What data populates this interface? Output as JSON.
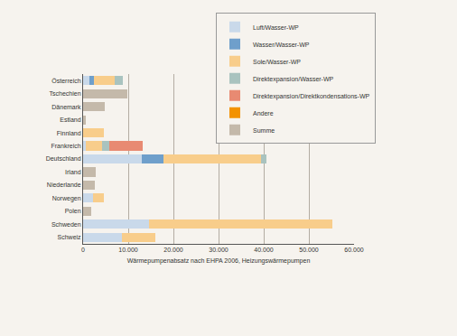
{
  "chart_data": {
    "type": "bar",
    "orientation": "horizontal",
    "stacked": true,
    "grid": true,
    "legend": "top right",
    "x_label": "Wärmepumpenabsatz nach EHPA 2006, Heizungswärmepumpen",
    "categories": [
      "Österreich",
      "Tschechien",
      "Dänemark",
      "Estland",
      "Finnland",
      "Frankreich",
      "Deutschland",
      "Irland",
      "Niederlande",
      "Norwegen",
      "Polen",
      "Schweden",
      "Schweiz"
    ],
    "series": [
      {
        "name": "Luft/Wasser-WP",
        "color": "#c9d9ea",
        "values": [
          1400,
          null,
          null,
          null,
          null,
          500,
          13000,
          null,
          null,
          2200,
          null,
          14600,
          8600
        ]
      },
      {
        "name": "Wasser/Wasser-WP",
        "color": "#6f9fcb",
        "values": [
          1000,
          null,
          null,
          null,
          null,
          null,
          4800,
          null,
          null,
          null,
          null,
          null,
          null
        ]
      },
      {
        "name": "Sole/Wasser-WP",
        "color": "#f8cd8b",
        "values": [
          4600,
          null,
          null,
          null,
          4600,
          3600,
          21600,
          null,
          null,
          2400,
          null,
          40600,
          7400
        ]
      },
      {
        "name": "Direktexpansion/Wasser-WP",
        "color": "#a9c3bf",
        "values": [
          1800,
          null,
          null,
          null,
          null,
          1600,
          1200,
          null,
          null,
          null,
          null,
          null,
          null
        ]
      },
      {
        "name": "Direktexpansion/Direktkondensations-WP",
        "color": "#e88a72",
        "values": [
          null,
          null,
          null,
          null,
          null,
          7400,
          null,
          null,
          null,
          null,
          null,
          null,
          null
        ]
      },
      {
        "name": "Andere",
        "color": "#f39200",
        "values": [
          0,
          0,
          0,
          0,
          0,
          0,
          0,
          0,
          0,
          0,
          0,
          0,
          0
        ]
      },
      {
        "name": "Summe",
        "color": "#c4b9aa",
        "values": [
          null,
          9800,
          4800,
          600,
          null,
          null,
          null,
          2800,
          2600,
          null,
          1800,
          null,
          null
        ]
      }
    ],
    "xlim": [
      0,
      60000
    ],
    "xticks": [
      0,
      {
        "value": 10000,
        "label": "10.000"
      },
      {
        "value": 20000,
        "label": "20.000"
      },
      {
        "value": 30000,
        "label": "30.000"
      },
      {
        "value": 40000,
        "label": "40.000"
      },
      {
        "value": 50000,
        "label": "50.000"
      },
      {
        "value": 60000,
        "label": "60.000"
      }
    ]
  }
}
